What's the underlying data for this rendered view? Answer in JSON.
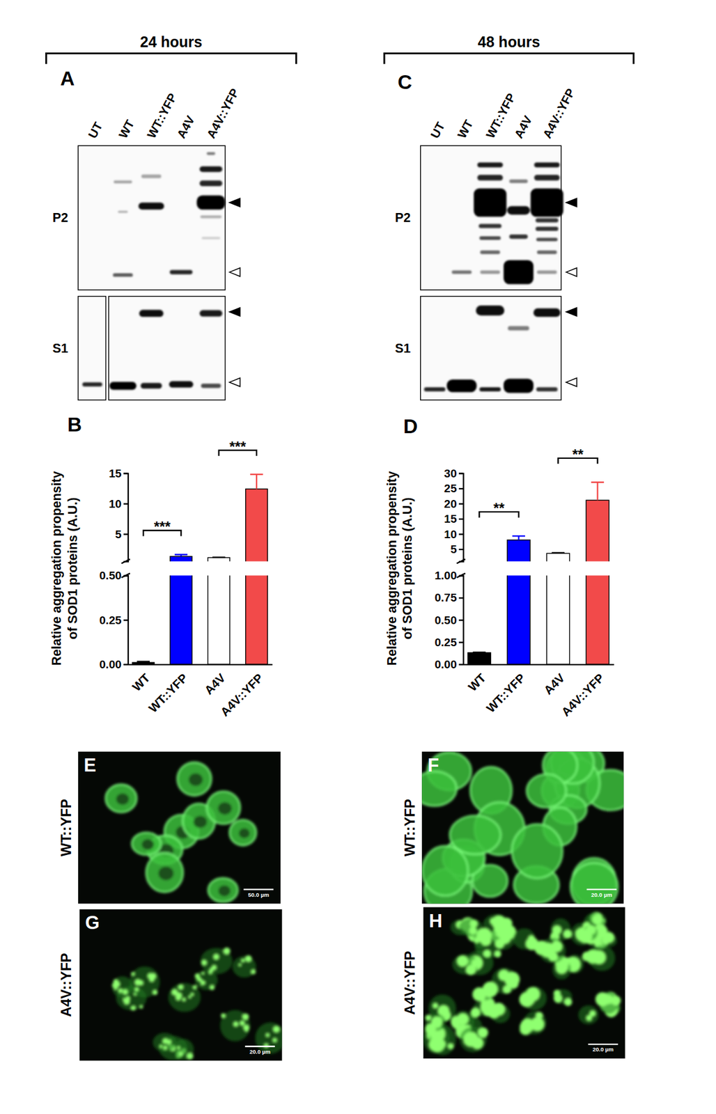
{
  "headers": [
    "24 hours",
    "48 hours"
  ],
  "blots": [
    {
      "panel": "A",
      "lanes": [
        "UT",
        "WT",
        "WT::YFP",
        "A4V",
        "A4V::YFP"
      ],
      "fractions": [
        "P2",
        "S1"
      ]
    },
    {
      "panel": "C",
      "lanes": [
        "UT",
        "WT",
        "WT::YFP",
        "A4V",
        "A4V::YFP"
      ],
      "fractions": [
        "P2",
        "S1"
      ]
    }
  ],
  "chart_data": [
    {
      "type": "bar",
      "panel": "B",
      "categories": [
        "WT",
        "WT::YFP",
        "A4V",
        "A4V::YFP"
      ],
      "values": [
        0.01,
        1.3,
        1.1,
        12.4
      ],
      "errors": [
        0.005,
        0.3,
        0.05,
        2.4
      ],
      "colors": [
        "#000000",
        "#0000ff",
        "#ffffff",
        "#f24a4a"
      ],
      "y_label": [
        "Relative aggregation propensity",
        "of SOD1 proteins (A.U.)"
      ],
      "segments": [
        {
          "ylim": [
            0,
            0.5
          ],
          "yticks": [
            {
              "value": 0,
              "label": "0.00"
            },
            {
              "value": 0.25,
              "label": "0.25"
            },
            {
              "value": 0.5,
              "label": "0.50"
            }
          ]
        },
        {
          "ylim": [
            0.5,
            15
          ],
          "yticks": [
            5,
            10,
            15
          ]
        }
      ],
      "significance": [
        {
          "pair": [
            0,
            1
          ],
          "label": "***"
        },
        {
          "pair": [
            2,
            3
          ],
          "label": "***"
        }
      ]
    },
    {
      "type": "bar",
      "panel": "D",
      "categories": [
        "WT",
        "WT::YFP",
        "A4V",
        "A4V::YFP"
      ],
      "values": [
        0.13,
        8.0,
        3.6,
        21.1
      ],
      "errors": [
        0.005,
        1.3,
        0.2,
        5.9
      ],
      "colors": [
        "#000000",
        "#0000ff",
        "#ffffff",
        "#f24a4a"
      ],
      "y_label": [
        "Relative aggregation propensity",
        "of SOD1 proteins (A.U.)"
      ],
      "segments": [
        {
          "ylim": [
            0,
            1
          ],
          "yticks": [
            {
              "value": 0,
              "label": "0.00"
            },
            {
              "value": 0.25,
              "label": "0.25"
            },
            {
              "value": 0.5,
              "label": "0.50"
            },
            {
              "value": 0.75,
              "label": "0.75"
            },
            {
              "value": 1,
              "label": "1.00"
            }
          ]
        },
        {
          "ylim": [
            1,
            30
          ],
          "yticks": [
            5,
            10,
            15,
            20,
            25,
            30
          ]
        }
      ],
      "significance": [
        {
          "pair": [
            0,
            1
          ],
          "label": "**"
        },
        {
          "pair": [
            2,
            3
          ],
          "label": "**"
        }
      ]
    }
  ],
  "micrographs": [
    {
      "panel": "E",
      "label": "WT::YFP",
      "scale_bar": "50.0 µm"
    },
    {
      "panel": "F",
      "label": "WT::YFP",
      "scale_bar": "20.0 µm"
    },
    {
      "panel": "G",
      "label": "A4V::YFP",
      "scale_bar": "20.0 µm"
    },
    {
      "panel": "H",
      "label": "A4V::YFP",
      "scale_bar": "20.0 µm"
    }
  ]
}
